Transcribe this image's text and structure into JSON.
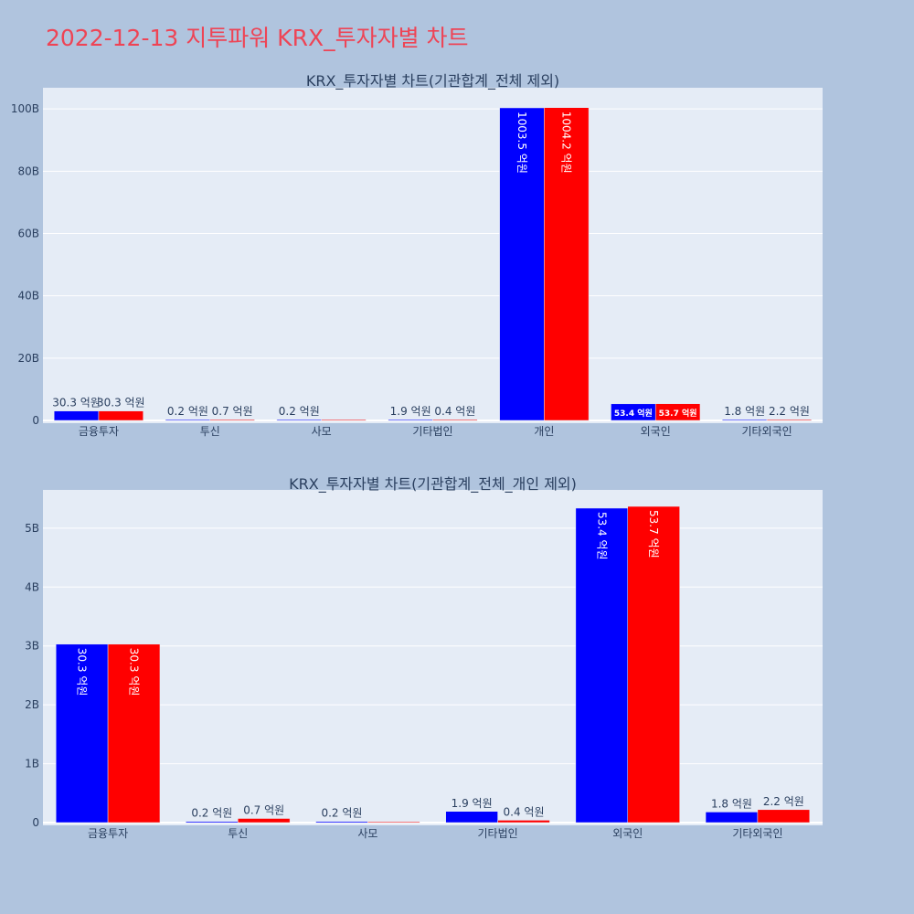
{
  "page_title": "2022-12-13 지투파워 KRX_투자자별 차트",
  "colors": {
    "buy": "#0000ff",
    "sell": "#ff0000",
    "plot_bg": "#e5ecf6",
    "page_bg": "#b0c4de",
    "title": "#ee4455"
  },
  "chart_data": [
    {
      "type": "bar",
      "title": "KRX_투자자별 차트(기관합계_전체 제외)",
      "categories": [
        "금융투자",
        "투신",
        "사모",
        "기타법인",
        "개인",
        "외국인",
        "기타외국인"
      ],
      "series": [
        {
          "values": [
            3030000000,
            20000000,
            20000000,
            190000000,
            100350000000,
            5340000000,
            180000000
          ],
          "labels": [
            "30.3 억원",
            "0.2 억원",
            "0.2 억원",
            "1.9 억원",
            "1003.5 억원",
            "53.4 억원",
            "1.8 억원"
          ]
        },
        {
          "values": [
            3030000000,
            70000000,
            0,
            40000000,
            100420000000,
            5370000000,
            220000000
          ],
          "labels": [
            "30.3 억원",
            "0.7 억원",
            "",
            "0.4 억원",
            "1004.2 억원",
            "53.7 억원",
            "2.2 억원"
          ]
        }
      ],
      "yticks": [
        0,
        20000000000,
        40000000000,
        60000000000,
        80000000000,
        100000000000
      ],
      "ytick_labels": [
        "0",
        "20B",
        "40B",
        "60B",
        "80B",
        "100B"
      ],
      "ylim": [
        0,
        106800000000
      ],
      "grid": true,
      "legend": "none"
    },
    {
      "type": "bar",
      "title": "KRX_투자자별 차트(기관합계_전체_개인 제외)",
      "categories": [
        "금융투자",
        "투신",
        "사모",
        "기타법인",
        "외국인",
        "기타외국인"
      ],
      "series": [
        {
          "values": [
            3030000000,
            20000000,
            20000000,
            190000000,
            5340000000,
            180000000
          ],
          "labels": [
            "30.3 억원",
            "0.2 억원",
            "0.2 억원",
            "1.9 억원",
            "53.4 억원",
            "1.8 억원"
          ]
        },
        {
          "values": [
            3030000000,
            70000000,
            0,
            40000000,
            5370000000,
            220000000
          ],
          "labels": [
            "30.3 억원",
            "0.7 억원",
            "",
            "0.4 억원",
            "53.7 억원",
            "2.2 억원"
          ]
        }
      ],
      "yticks": [
        0,
        1000000000,
        2000000000,
        3000000000,
        4000000000,
        5000000000
      ],
      "ytick_labels": [
        "0",
        "1B",
        "2B",
        "3B",
        "4B",
        "5B"
      ],
      "ylim": [
        0,
        5650000000
      ],
      "grid": true,
      "legend": "none"
    }
  ]
}
